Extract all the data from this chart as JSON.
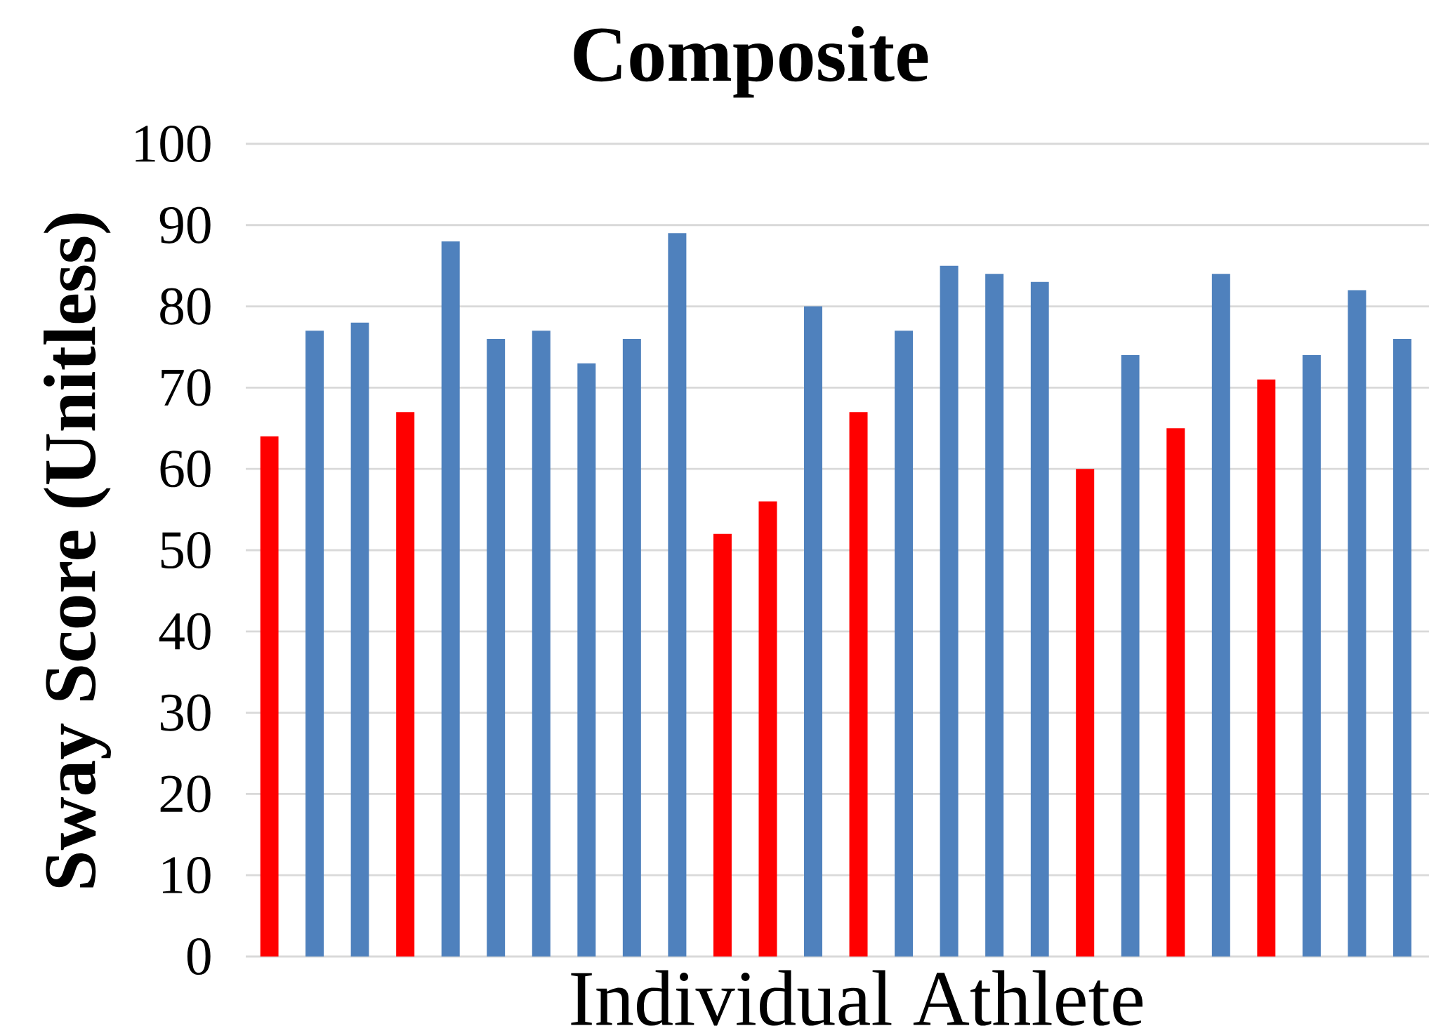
{
  "chart_data": {
    "type": "bar",
    "title": "Composite",
    "xlabel": "Individual Athlete",
    "ylabel": "Sway Score (Unitless)",
    "categories": [
      null,
      null,
      null,
      null,
      null,
      null,
      null,
      null,
      null,
      null,
      null,
      null,
      null,
      null,
      null,
      null,
      null,
      null,
      null,
      null,
      null,
      null,
      null,
      null,
      null,
      null
    ],
    "values": [
      64,
      77,
      78,
      67,
      88,
      76,
      77,
      73,
      76,
      89,
      52,
      56,
      80,
      67,
      77,
      85,
      84,
      83,
      60,
      74,
      65,
      84,
      71,
      74,
      82,
      76
    ],
    "colors": [
      "#ff0000",
      "#4f81bd",
      "#4f81bd",
      "#ff0000",
      "#4f81bd",
      "#4f81bd",
      "#4f81bd",
      "#4f81bd",
      "#4f81bd",
      "#4f81bd",
      "#ff0000",
      "#ff0000",
      "#4f81bd",
      "#ff0000",
      "#4f81bd",
      "#4f81bd",
      "#4f81bd",
      "#4f81bd",
      "#ff0000",
      "#4f81bd",
      "#ff0000",
      "#4f81bd",
      "#ff0000",
      "#4f81bd",
      "#4f81bd",
      "#4f81bd"
    ],
    "ylim": [
      0,
      100
    ],
    "yticks": [
      0,
      10,
      20,
      30,
      40,
      50,
      60,
      70,
      80,
      90,
      100
    ],
    "grid": "y",
    "tick_labels": "y"
  }
}
